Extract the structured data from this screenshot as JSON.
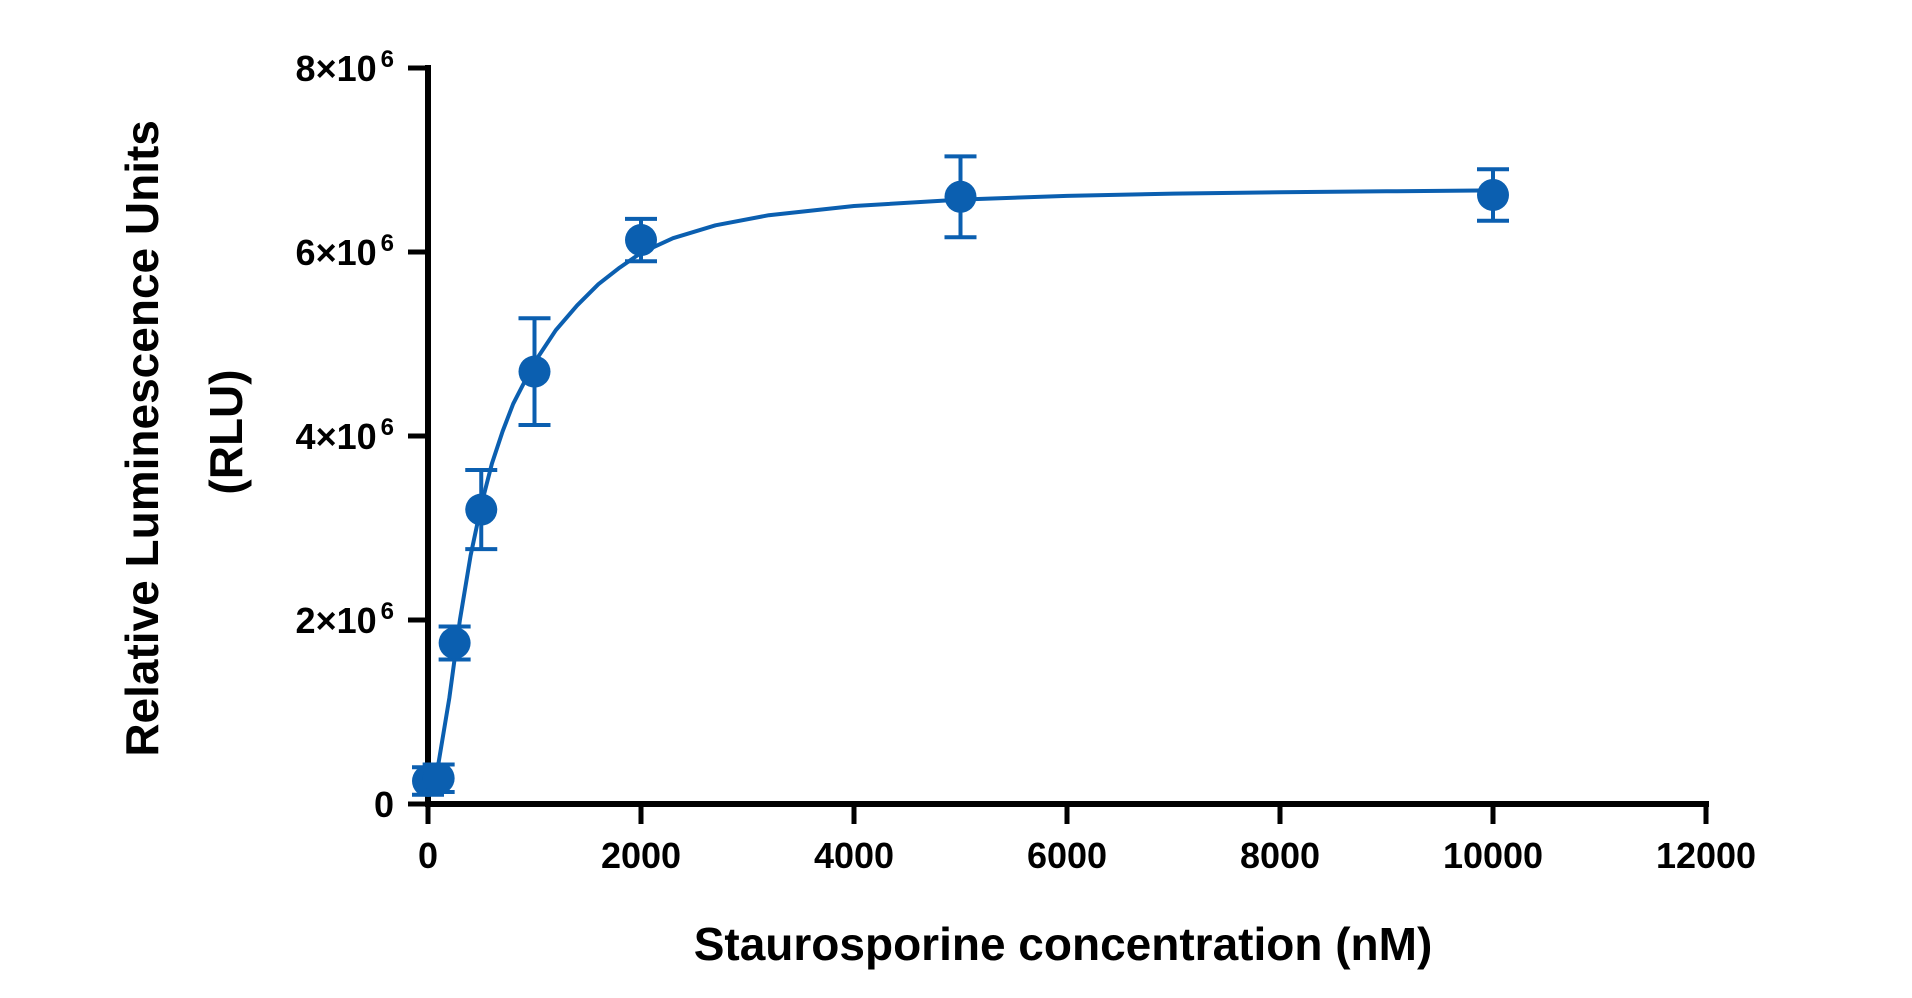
{
  "chart_data": {
    "type": "scatter",
    "xlabel": "Staurosporine concentration (nM)",
    "ylabel_lines": [
      "Relative Luminescence Units",
      "(RLU)"
    ],
    "xlim": [
      0,
      12000
    ],
    "ylim": [
      0,
      8000000
    ],
    "x_ticks": [
      0,
      2000,
      4000,
      6000,
      8000,
      10000,
      12000
    ],
    "x_tick_labels": [
      "0",
      "2000",
      "4000",
      "6000",
      "8000",
      "10000",
      "12000"
    ],
    "y_ticks": [
      0,
      2000000,
      4000000,
      6000000,
      8000000
    ],
    "y_tick_labels": [
      {
        "base": "0",
        "exp": ""
      },
      {
        "base": "2×10",
        "exp": "6"
      },
      {
        "base": "4×10",
        "exp": "6"
      },
      {
        "base": "6×10",
        "exp": "6"
      },
      {
        "base": "8×10",
        "exp": "6"
      }
    ],
    "grid": false,
    "legend": "none",
    "series": [
      {
        "color": "#0b5fb0",
        "points": [
          {
            "x": 0,
            "y": 250000,
            "err": 150000
          },
          {
            "x": 100,
            "y": 280000,
            "err": 150000
          },
          {
            "x": 250,
            "y": 1750000,
            "err": 180000
          },
          {
            "x": 500,
            "y": 3200000,
            "err": 430000
          },
          {
            "x": 1000,
            "y": 4700000,
            "err": 580000
          },
          {
            "x": 2000,
            "y": 6130000,
            "err": 230000
          },
          {
            "x": 5000,
            "y": 6600000,
            "err": 440000
          },
          {
            "x": 10000,
            "y": 6620000,
            "err": 280000
          }
        ],
        "fit_curve": [
          [
            0,
            250000
          ],
          [
            100,
            450000
          ],
          [
            200,
            1150000
          ],
          [
            300,
            2000000
          ],
          [
            400,
            2700000
          ],
          [
            500,
            3250000
          ],
          [
            600,
            3700000
          ],
          [
            700,
            4050000
          ],
          [
            800,
            4350000
          ],
          [
            1000,
            4800000
          ],
          [
            1200,
            5150000
          ],
          [
            1400,
            5420000
          ],
          [
            1600,
            5650000
          ],
          [
            1800,
            5830000
          ],
          [
            2000,
            5990000
          ],
          [
            2300,
            6150000
          ],
          [
            2700,
            6290000
          ],
          [
            3200,
            6400000
          ],
          [
            4000,
            6500000
          ],
          [
            5000,
            6570000
          ],
          [
            6000,
            6610000
          ],
          [
            7000,
            6635000
          ],
          [
            8000,
            6650000
          ],
          [
            9000,
            6660000
          ],
          [
            10000,
            6670000
          ]
        ]
      }
    ]
  }
}
